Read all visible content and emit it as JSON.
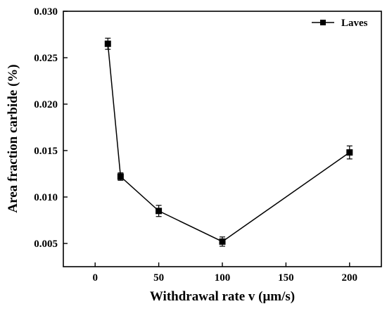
{
  "chart_data": {
    "type": "line",
    "xlabel": "Withdrawal rate v (μm/s)",
    "ylabel": "Area fraction carbide (%)",
    "xlim": [
      -25,
      225
    ],
    "ylim": [
      0.0025,
      0.03
    ],
    "x_ticks": [
      0,
      50,
      100,
      150,
      200
    ],
    "x_tick_labels": [
      "0",
      "50",
      "100",
      "150",
      "200"
    ],
    "y_ticks": [
      0.005,
      0.01,
      0.015,
      0.02,
      0.025,
      0.03
    ],
    "y_tick_labels": [
      "0.005",
      "0.010",
      "0.015",
      "0.020",
      "0.025",
      "0.030"
    ],
    "grid": false,
    "legend_position": "top-right",
    "series": [
      {
        "name": "Laves",
        "color": "#000000",
        "marker": "square",
        "points": [
          {
            "x": 10,
            "y": 0.0265,
            "err": 0.0006
          },
          {
            "x": 20,
            "y": 0.0122,
            "err": 0.0004
          },
          {
            "x": 50,
            "y": 0.0085,
            "err": 0.0006
          },
          {
            "x": 100,
            "y": 0.0052,
            "err": 0.0005
          },
          {
            "x": 200,
            "y": 0.0148,
            "err": 0.0007
          }
        ]
      }
    ]
  }
}
